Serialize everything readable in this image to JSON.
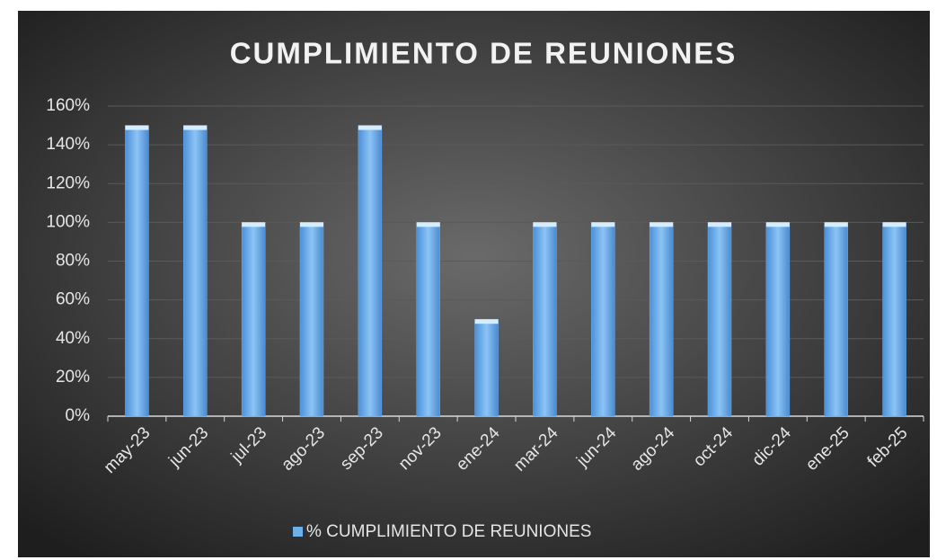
{
  "chart_data": {
    "type": "bar",
    "title": "CUMPLIMIENTO DE REUNIONES",
    "categories": [
      "may-23",
      "jun-23",
      "jul-23",
      "ago-23",
      "sep-23",
      "nov-23",
      "ene-24",
      "mar-24",
      "jun-24",
      "ago-24",
      "oct-24",
      "dic-24",
      "ene-25",
      "feb-25"
    ],
    "series": [
      {
        "name": "% CUMPLIMIENTO DE REUNIONES",
        "color": "#6fb0ea",
        "values": [
          150,
          150,
          100,
          100,
          150,
          100,
          50,
          100,
          100,
          100,
          100,
          100,
          100,
          100
        ]
      }
    ],
    "ylim": [
      0,
      160
    ],
    "yticks": [
      {
        "value": 0,
        "label": "0%"
      },
      {
        "value": 20,
        "label": "20%"
      },
      {
        "value": 40,
        "label": "40%"
      },
      {
        "value": 60,
        "label": "60%"
      },
      {
        "value": 80,
        "label": "80%"
      },
      {
        "value": 100,
        "label": "100%"
      },
      {
        "value": 120,
        "label": "120%"
      },
      {
        "value": 140,
        "label": "140%"
      },
      {
        "value": 160,
        "label": "160%"
      }
    ],
    "grid": true,
    "legend": "bottom"
  }
}
